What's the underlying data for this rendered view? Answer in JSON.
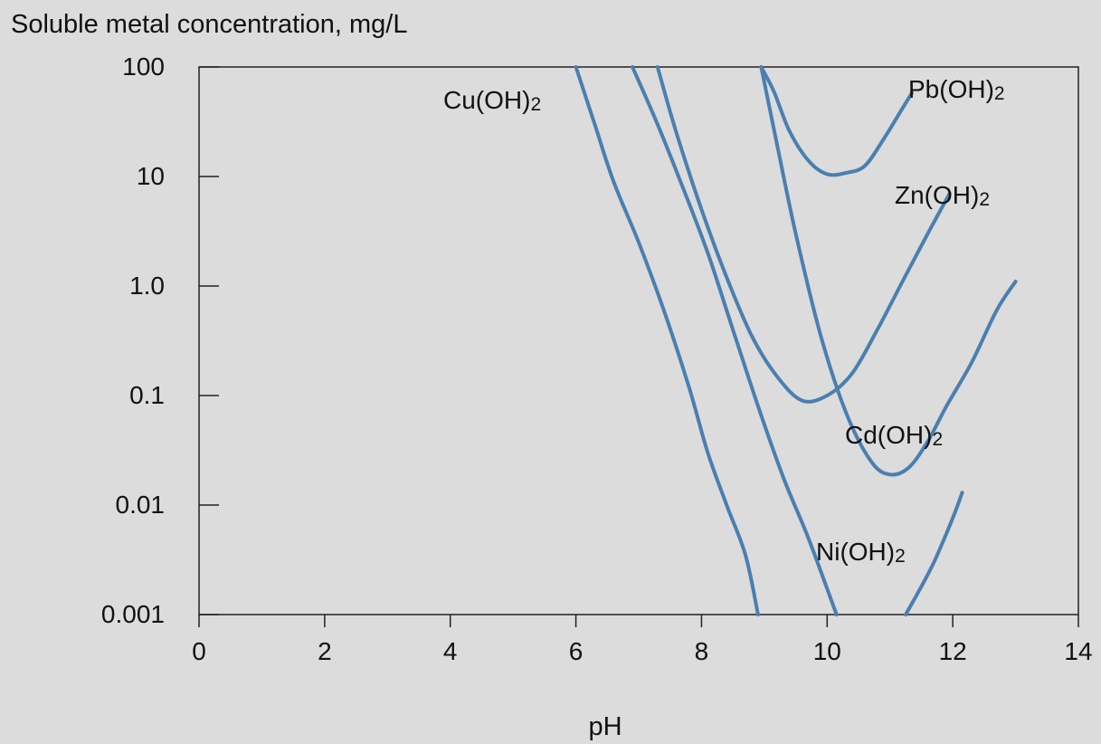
{
  "chart_data": {
    "type": "line",
    "title": "",
    "ylabel": "Soluble metal concentration, mg/L",
    "xlabel": "pH",
    "xlim": [
      0,
      14
    ],
    "ylim": [
      0.001,
      100
    ],
    "y_scale": "log",
    "grid": false,
    "x_ticks": [
      0,
      2,
      4,
      6,
      8,
      10,
      12,
      14
    ],
    "x_tick_labels": [
      "0",
      "2",
      "4",
      "6",
      "8",
      "10",
      "12",
      "14"
    ],
    "y_ticks": [
      100,
      10,
      1,
      0.1,
      0.01,
      0.001
    ],
    "y_tick_labels": [
      "100",
      "10",
      "1.0",
      "0.1",
      "0.01",
      "0.001"
    ],
    "line_color": "#4a7fb0",
    "series": [
      {
        "name": "Cu(OH)2",
        "label_sub": "2",
        "label_main": "Cu(OH)",
        "points": [
          [
            6.0,
            100
          ],
          [
            6.3,
            30
          ],
          [
            6.6,
            9
          ],
          [
            7.0,
            2.5
          ],
          [
            7.4,
            0.6
          ],
          [
            7.8,
            0.12
          ],
          [
            8.1,
            0.03
          ],
          [
            8.4,
            0.01
          ],
          [
            8.7,
            0.0035
          ],
          [
            8.9,
            0.001
          ]
        ]
      },
      {
        "name": "Ni(OH)2",
        "label_sub": "2",
        "label_main": "Ni(OH)",
        "points": [
          [
            6.9,
            100
          ],
          [
            7.3,
            30
          ],
          [
            7.7,
            8
          ],
          [
            8.1,
            2
          ],
          [
            8.5,
            0.4
          ],
          [
            8.9,
            0.08
          ],
          [
            9.3,
            0.018
          ],
          [
            9.7,
            0.005
          ],
          [
            10.15,
            0.001
          ]
        ]
      },
      {
        "name": "Zn(OH)2",
        "label_sub": "2",
        "label_main": "Zn(OH)",
        "points": [
          [
            7.3,
            100
          ],
          [
            7.6,
            25
          ],
          [
            8.0,
            5
          ],
          [
            8.4,
            1.2
          ],
          [
            8.8,
            0.35
          ],
          [
            9.2,
            0.15
          ],
          [
            9.6,
            0.09
          ],
          [
            10.0,
            0.1
          ],
          [
            10.4,
            0.16
          ],
          [
            10.8,
            0.4
          ],
          [
            11.2,
            1.1
          ],
          [
            11.6,
            3
          ],
          [
            11.95,
            7
          ]
        ]
      },
      {
        "name": "Pb(OH)2",
        "label_sub": "2",
        "label_main": "Pb(OH)",
        "points": [
          [
            8.95,
            100
          ],
          [
            9.15,
            60
          ],
          [
            9.4,
            26
          ],
          [
            9.7,
            14
          ],
          [
            10.0,
            10.5
          ],
          [
            10.3,
            10.8
          ],
          [
            10.6,
            12.5
          ],
          [
            10.9,
            22
          ],
          [
            11.2,
            42
          ],
          [
            11.35,
            58
          ]
        ]
      },
      {
        "name": "Cd(OH)2",
        "label_sub": "2",
        "label_main": "Cd(OH)",
        "points": [
          [
            8.95,
            100
          ],
          [
            9.2,
            20
          ],
          [
            9.5,
            3
          ],
          [
            9.9,
            0.35
          ],
          [
            10.3,
            0.07
          ],
          [
            10.7,
            0.025
          ],
          [
            11.0,
            0.019
          ],
          [
            11.3,
            0.022
          ],
          [
            11.6,
            0.038
          ],
          [
            11.9,
            0.08
          ],
          [
            12.3,
            0.2
          ],
          [
            12.7,
            0.6
          ],
          [
            13.0,
            1.1
          ]
        ]
      },
      {
        "name": "unlabeled-curve",
        "points": [
          [
            11.25,
            0.001
          ],
          [
            11.5,
            0.0018
          ],
          [
            11.7,
            0.003
          ],
          [
            11.9,
            0.0055
          ],
          [
            12.05,
            0.009
          ],
          [
            12.15,
            0.013
          ]
        ]
      }
    ]
  }
}
